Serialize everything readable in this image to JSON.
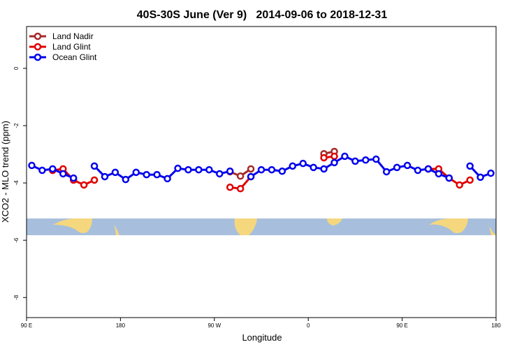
{
  "chart_data": {
    "type": "line",
    "title": "40S-30S June (Ver 9)   2014-09-06 to 2018-12-31",
    "x_label": "Longitude",
    "y_label": "XCO2 - MLO trend (ppm)",
    "x": [
      95,
      105,
      115,
      125,
      135,
      145,
      155,
      165,
      175,
      185,
      195,
      205,
      215,
      225,
      235,
      245,
      255,
      265,
      275,
      285,
      295,
      305,
      315,
      325,
      335,
      345,
      355,
      365,
      375,
      385,
      395,
      405,
      415,
      425,
      435,
      445,
      455,
      465,
      475,
      485,
      495,
      505,
      515,
      525,
      535
    ],
    "series": [
      {
        "name": "Land Nadir",
        "color": "#a52a2a",
        "values": [
          null,
          null,
          -3.56,
          null,
          null,
          null,
          null,
          null,
          null,
          null,
          null,
          null,
          null,
          null,
          null,
          null,
          null,
          null,
          null,
          -3.61,
          -3.76,
          -3.51,
          null,
          null,
          null,
          null,
          null,
          null,
          -2.98,
          -2.9,
          null,
          null,
          null,
          null,
          null,
          null,
          null,
          null,
          -3.51,
          null,
          null,
          null,
          null,
          null,
          null
        ]
      },
      {
        "name": "Land Glint",
        "color": "#e00000",
        "values": [
          null,
          null,
          -3.56,
          -3.51,
          -3.9,
          -4.07,
          -3.9,
          null,
          null,
          null,
          null,
          null,
          null,
          null,
          null,
          null,
          null,
          null,
          null,
          -4.15,
          -4.2,
          -3.78,
          null,
          null,
          null,
          null,
          null,
          null,
          -3.12,
          -3.07,
          null,
          null,
          null,
          null,
          null,
          null,
          null,
          null,
          -3.51,
          -3.51,
          -3.83,
          -4.07,
          -3.9,
          null,
          null
        ]
      },
      {
        "name": "Ocean Glint",
        "color": "#0000ee",
        "values": [
          -3.39,
          -3.56,
          -3.51,
          -3.68,
          -3.83,
          null,
          -3.41,
          -3.78,
          -3.63,
          -3.88,
          -3.63,
          -3.71,
          -3.71,
          -3.85,
          -3.49,
          -3.54,
          -3.54,
          -3.54,
          -3.68,
          -3.59,
          null,
          -3.78,
          -3.54,
          -3.54,
          -3.59,
          -3.41,
          -3.32,
          -3.46,
          -3.51,
          -3.29,
          -3.07,
          -3.24,
          -3.2,
          -3.17,
          -3.61,
          -3.46,
          -3.39,
          -3.56,
          -3.51,
          -3.68,
          -3.83,
          null,
          -3.41,
          -3.8,
          -3.66
        ]
      }
    ],
    "xlim": [
      90,
      540
    ],
    "xticks": [
      {
        "value": 90,
        "label": "90 E"
      },
      180,
      {
        "value": 270,
        "label": "90 W"
      },
      {
        "value": 360,
        "label": "0"
      },
      {
        "value": 450,
        "label": "90 E"
      },
      {
        "value": 540,
        "label": "180"
      }
    ],
    "ylim": [
      -8.7,
      1.46
    ],
    "yticks": [
      -8,
      -6,
      -4,
      -2,
      0
    ],
    "legend": "top-left"
  }
}
